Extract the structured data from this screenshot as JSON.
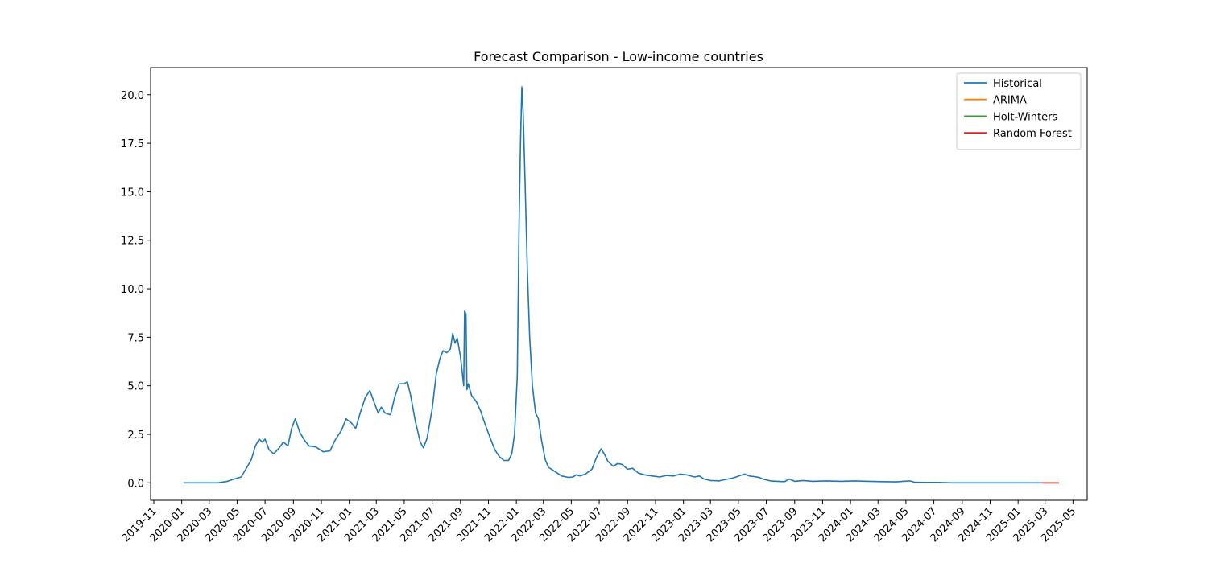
{
  "chart_data": {
    "type": "line",
    "title": "Forecast Comparison - Low-income countries",
    "xlabel": "",
    "ylabel": "",
    "xlim": [
      "2019-10-25",
      "2025-06-01"
    ],
    "ylim": [
      -0.9,
      21.4
    ],
    "yticks": [
      0.0,
      2.5,
      5.0,
      7.5,
      10.0,
      12.5,
      15.0,
      17.5,
      20.0
    ],
    "ytick_labels": [
      "0.0",
      "2.5",
      "5.0",
      "7.5",
      "10.0",
      "12.5",
      "15.0",
      "17.5",
      "20.0"
    ],
    "xticks": [
      "2019-11",
      "2020-01",
      "2020-03",
      "2020-05",
      "2020-07",
      "2020-09",
      "2020-11",
      "2021-01",
      "2021-03",
      "2021-05",
      "2021-07",
      "2021-09",
      "2021-11",
      "2022-01",
      "2022-03",
      "2022-05",
      "2022-07",
      "2022-09",
      "2022-11",
      "2023-01",
      "2023-03",
      "2023-05",
      "2023-07",
      "2023-09",
      "2023-11",
      "2024-01",
      "2024-03",
      "2024-05",
      "2024-07",
      "2024-09",
      "2024-11",
      "2025-01",
      "2025-03",
      "2025-05"
    ],
    "grid": false,
    "legend_position": "top-right",
    "series": [
      {
        "name": "Historical",
        "color": "#1f77b4",
        "points": [
          [
            "2020-01-05",
            0.0
          ],
          [
            "2020-02-15",
            0.0
          ],
          [
            "2020-03-20",
            0.0
          ],
          [
            "2020-04-10",
            0.08
          ],
          [
            "2020-04-25",
            0.2
          ],
          [
            "2020-05-10",
            0.3
          ],
          [
            "2020-05-20",
            0.7
          ],
          [
            "2020-06-01",
            1.2
          ],
          [
            "2020-06-10",
            1.9
          ],
          [
            "2020-06-18",
            2.25
          ],
          [
            "2020-06-25",
            2.1
          ],
          [
            "2020-07-01",
            2.25
          ],
          [
            "2020-07-10",
            1.7
          ],
          [
            "2020-07-20",
            1.5
          ],
          [
            "2020-08-01",
            1.8
          ],
          [
            "2020-08-10",
            2.1
          ],
          [
            "2020-08-20",
            1.9
          ],
          [
            "2020-08-28",
            2.8
          ],
          [
            "2020-09-05",
            3.3
          ],
          [
            "2020-09-15",
            2.6
          ],
          [
            "2020-09-25",
            2.2
          ],
          [
            "2020-10-05",
            1.9
          ],
          [
            "2020-10-20",
            1.85
          ],
          [
            "2020-11-05",
            1.6
          ],
          [
            "2020-11-20",
            1.65
          ],
          [
            "2020-12-01",
            2.2
          ],
          [
            "2020-12-15",
            2.7
          ],
          [
            "2020-12-25",
            3.3
          ],
          [
            "2021-01-05",
            3.1
          ],
          [
            "2021-01-15",
            2.8
          ],
          [
            "2021-01-25",
            3.6
          ],
          [
            "2021-02-05",
            4.4
          ],
          [
            "2021-02-15",
            4.75
          ],
          [
            "2021-02-25",
            4.1
          ],
          [
            "2021-03-05",
            3.6
          ],
          [
            "2021-03-12",
            3.9
          ],
          [
            "2021-03-20",
            3.6
          ],
          [
            "2021-04-01",
            3.5
          ],
          [
            "2021-04-10",
            4.4
          ],
          [
            "2021-04-20",
            5.1
          ],
          [
            "2021-05-01",
            5.1
          ],
          [
            "2021-05-08",
            5.2
          ],
          [
            "2021-05-15",
            4.5
          ],
          [
            "2021-05-25",
            3.2
          ],
          [
            "2021-06-05",
            2.1
          ],
          [
            "2021-06-12",
            1.8
          ],
          [
            "2021-06-20",
            2.3
          ],
          [
            "2021-07-01",
            3.8
          ],
          [
            "2021-07-10",
            5.6
          ],
          [
            "2021-07-18",
            6.4
          ],
          [
            "2021-07-25",
            6.8
          ],
          [
            "2021-08-02",
            6.7
          ],
          [
            "2021-08-10",
            6.9
          ],
          [
            "2021-08-15",
            7.7
          ],
          [
            "2021-08-20",
            7.2
          ],
          [
            "2021-08-25",
            7.45
          ],
          [
            "2021-09-01",
            6.5
          ],
          [
            "2021-09-08",
            5.0
          ],
          [
            "2021-09-10",
            8.85
          ],
          [
            "2021-09-13",
            8.7
          ],
          [
            "2021-09-15",
            4.8
          ],
          [
            "2021-09-18",
            5.1
          ],
          [
            "2021-09-25",
            4.5
          ],
          [
            "2021-10-05",
            4.2
          ],
          [
            "2021-10-15",
            3.7
          ],
          [
            "2021-10-25",
            3.0
          ],
          [
            "2021-11-05",
            2.3
          ],
          [
            "2021-11-15",
            1.7
          ],
          [
            "2021-11-25",
            1.35
          ],
          [
            "2021-12-05",
            1.15
          ],
          [
            "2021-12-15",
            1.15
          ],
          [
            "2021-12-22",
            1.5
          ],
          [
            "2021-12-28",
            2.5
          ],
          [
            "2022-01-03",
            5.5
          ],
          [
            "2022-01-07",
            13.5
          ],
          [
            "2022-01-10",
            17.5
          ],
          [
            "2022-01-13",
            20.4
          ],
          [
            "2022-01-16",
            19.0
          ],
          [
            "2022-01-20",
            15.5
          ],
          [
            "2022-01-25",
            11.0
          ],
          [
            "2022-01-30",
            7.5
          ],
          [
            "2022-02-05",
            5.0
          ],
          [
            "2022-02-12",
            3.6
          ],
          [
            "2022-02-18",
            3.3
          ],
          [
            "2022-02-25",
            2.2
          ],
          [
            "2022-03-05",
            1.2
          ],
          [
            "2022-03-12",
            0.8
          ],
          [
            "2022-03-25",
            0.6
          ],
          [
            "2022-04-10",
            0.35
          ],
          [
            "2022-04-25",
            0.28
          ],
          [
            "2022-05-05",
            0.3
          ],
          [
            "2022-05-12",
            0.42
          ],
          [
            "2022-05-20",
            0.35
          ],
          [
            "2022-06-01",
            0.45
          ],
          [
            "2022-06-15",
            0.7
          ],
          [
            "2022-06-25",
            1.3
          ],
          [
            "2022-07-05",
            1.75
          ],
          [
            "2022-07-12",
            1.5
          ],
          [
            "2022-07-20",
            1.1
          ],
          [
            "2022-08-01",
            0.85
          ],
          [
            "2022-08-10",
            1.0
          ],
          [
            "2022-08-20",
            0.95
          ],
          [
            "2022-09-01",
            0.7
          ],
          [
            "2022-09-12",
            0.75
          ],
          [
            "2022-09-25",
            0.5
          ],
          [
            "2022-10-10",
            0.4
          ],
          [
            "2022-10-25",
            0.35
          ],
          [
            "2022-11-10",
            0.3
          ],
          [
            "2022-11-25",
            0.38
          ],
          [
            "2022-12-10",
            0.35
          ],
          [
            "2022-12-25",
            0.45
          ],
          [
            "2023-01-10",
            0.4
          ],
          [
            "2023-01-25",
            0.3
          ],
          [
            "2023-02-05",
            0.35
          ],
          [
            "2023-02-15",
            0.2
          ],
          [
            "2023-03-01",
            0.12
          ],
          [
            "2023-03-20",
            0.1
          ],
          [
            "2023-04-05",
            0.18
          ],
          [
            "2023-04-20",
            0.25
          ],
          [
            "2023-05-05",
            0.38
          ],
          [
            "2023-05-15",
            0.45
          ],
          [
            "2023-05-25",
            0.35
          ],
          [
            "2023-06-05",
            0.32
          ],
          [
            "2023-06-15",
            0.28
          ],
          [
            "2023-06-25",
            0.18
          ],
          [
            "2023-07-10",
            0.1
          ],
          [
            "2023-07-25",
            0.08
          ],
          [
            "2023-08-10",
            0.06
          ],
          [
            "2023-08-20",
            0.2
          ],
          [
            "2023-09-01",
            0.08
          ],
          [
            "2023-09-20",
            0.12
          ],
          [
            "2023-10-10",
            0.08
          ],
          [
            "2023-11-10",
            0.1
          ],
          [
            "2023-12-10",
            0.08
          ],
          [
            "2024-01-10",
            0.1
          ],
          [
            "2024-02-10",
            0.08
          ],
          [
            "2024-03-10",
            0.06
          ],
          [
            "2024-04-10",
            0.05
          ],
          [
            "2024-04-25",
            0.08
          ],
          [
            "2024-05-10",
            0.1
          ],
          [
            "2024-05-20",
            0.03
          ],
          [
            "2024-06-10",
            0.02
          ],
          [
            "2024-07-10",
            0.02
          ],
          [
            "2024-08-10",
            0.0
          ],
          [
            "2024-10-10",
            0.0
          ],
          [
            "2024-12-10",
            0.0
          ],
          [
            "2025-02-01",
            0.0
          ],
          [
            "2025-02-22",
            0.0
          ]
        ]
      },
      {
        "name": "ARIMA",
        "color": "#ff7f0e",
        "points": [
          [
            "2025-02-22",
            0.0
          ],
          [
            "2025-03-31",
            0.0
          ]
        ]
      },
      {
        "name": "Holt-Winters",
        "color": "#2ca02c",
        "points": [
          [
            "2025-02-22",
            0.0
          ],
          [
            "2025-03-31",
            0.0
          ]
        ]
      },
      {
        "name": "Random Forest",
        "color": "#d62728",
        "points": [
          [
            "2025-02-22",
            0.0
          ],
          [
            "2025-03-31",
            0.0
          ]
        ]
      }
    ]
  }
}
